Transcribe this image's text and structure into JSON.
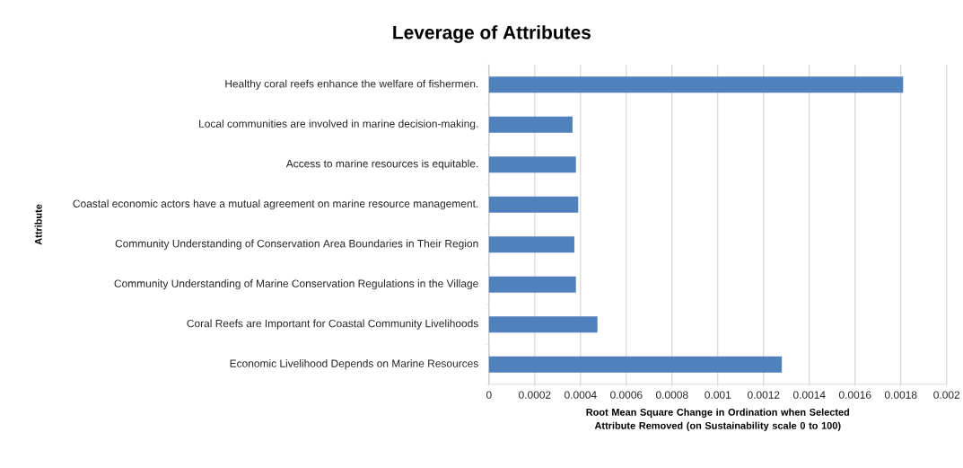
{
  "chart_data": {
    "type": "bar",
    "orientation": "horizontal",
    "title": "Leverage of Attributes",
    "xlabel": "Root Mean Square Change in Ordination when Selected Attribute Removed (on Sustainability scale 0 to 100)",
    "ylabel": "Attribute",
    "categories": [
      "Healthy coral reefs enhance the welfare of fishermen.",
      "Local communities are involved in marine decision-making.",
      "Access to marine resources is equitable.",
      "Coastal economic actors have a mutual agreement on marine resource management.",
      "Community Understanding of Conservation Area Boundaries in Their Region",
      "Community Understanding of Marine Conservation Regulations in the Village",
      "Coral Reefs are Important for Coastal Community Livelihoods",
      "Economic Livelihood Depends on Marine Resources"
    ],
    "values": [
      0.00181,
      0.000365,
      0.00038,
      0.00039,
      0.000373,
      0.00038,
      0.000474,
      0.00128
    ],
    "color": "#4f81bd",
    "xlim": [
      0,
      0.002
    ],
    "xticks": [
      0,
      0.0002,
      0.0004,
      0.0006,
      0.0008,
      0.001,
      0.0012,
      0.0014,
      0.0016,
      0.0018,
      0.002
    ],
    "grid": "x"
  }
}
